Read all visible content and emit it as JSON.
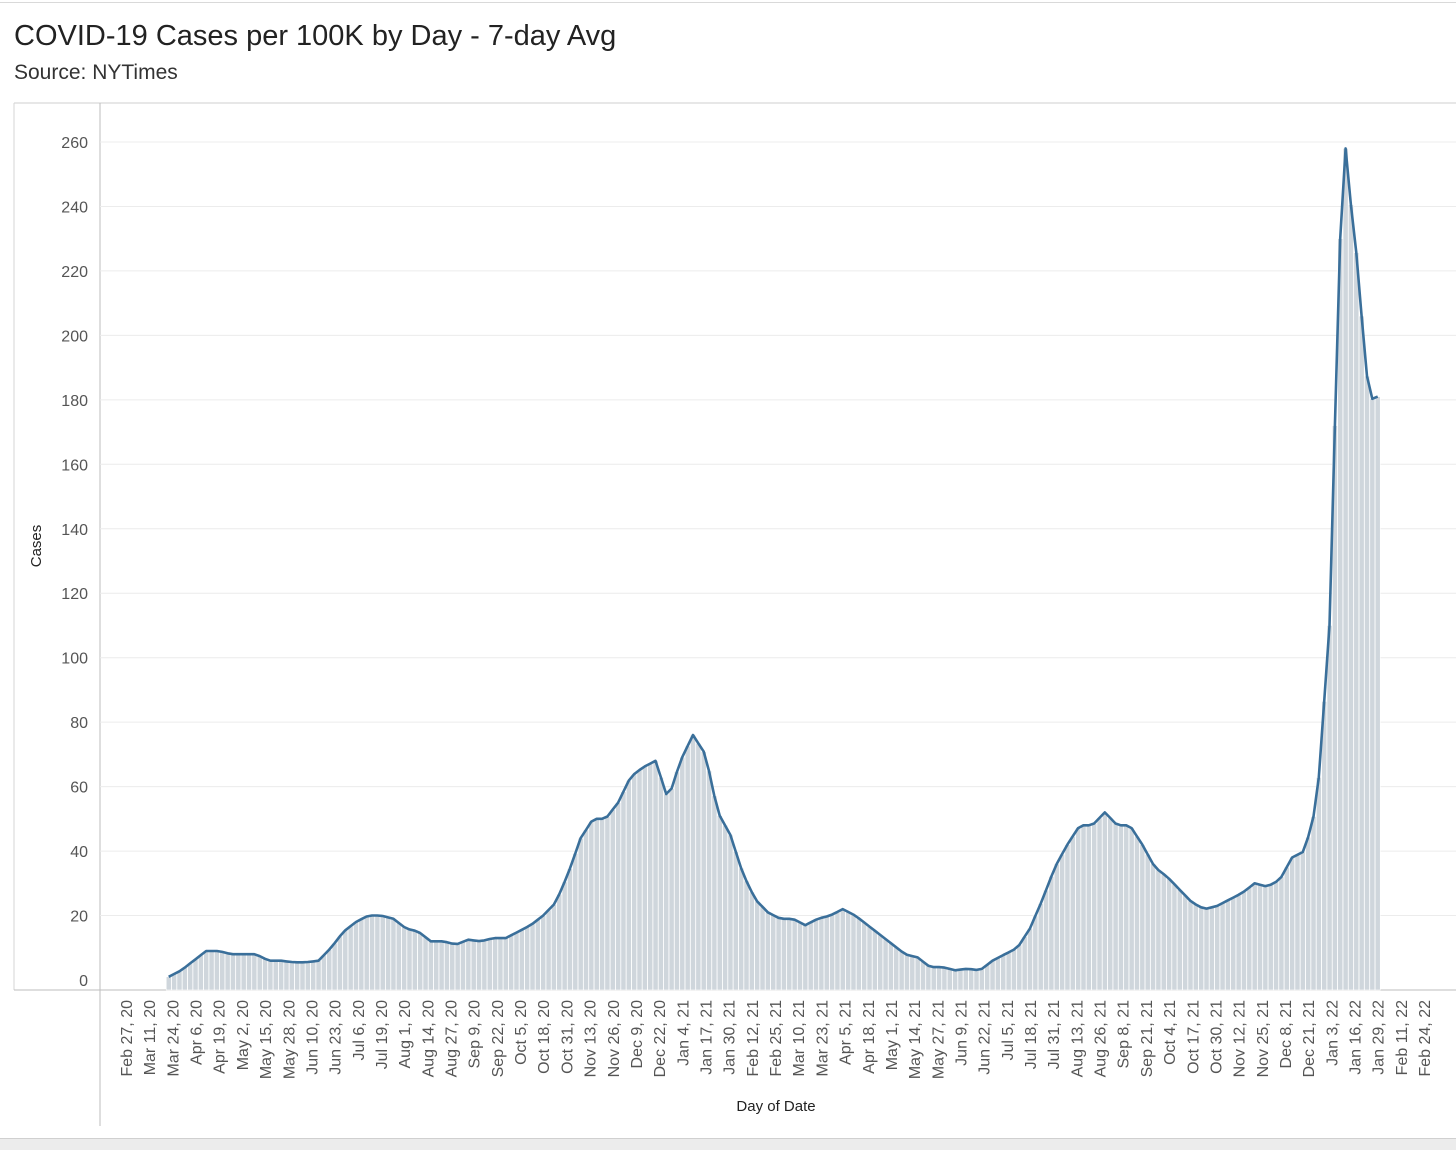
{
  "chart_data": {
    "type": "bar",
    "title": "COVID-19 Cases per 100K by Day - 7-day Avg",
    "subtitle": "Source: NYTimes",
    "xlabel": "Day of Date",
    "ylabel": "Cases",
    "ylim": [
      0,
      270
    ],
    "y_ticks": [
      0,
      20,
      40,
      60,
      80,
      100,
      120,
      140,
      160,
      180,
      200,
      220,
      240,
      260
    ],
    "x_tick_labels": [
      "Feb 27, 20",
      "Mar 11, 20",
      "Mar 24, 20",
      "Apr 6, 20",
      "Apr 19, 20",
      "May 2, 20",
      "May 15, 20",
      "May 28, 20",
      "Jun 10, 20",
      "Jun 23, 20",
      "Jul 6, 20",
      "Jul 19, 20",
      "Aug 1, 20",
      "Aug 14, 20",
      "Aug 27, 20",
      "Sep 9, 20",
      "Sep 22, 20",
      "Oct 5, 20",
      "Oct 18, 20",
      "Oct 31, 20",
      "Nov 13, 20",
      "Nov 26, 20",
      "Dec 9, 20",
      "Dec 22, 20",
      "Jan 4, 21",
      "Jan 17, 21",
      "Jan 30, 21",
      "Feb 12, 21",
      "Feb 25, 21",
      "Mar 10, 21",
      "Mar 23, 21",
      "Apr 5, 21",
      "Apr 18, 21",
      "May 1, 21",
      "May 14, 21",
      "May 27, 21",
      "Jun 9, 21",
      "Jun 22, 21",
      "Jul 5, 21",
      "Jul 18, 21",
      "Jul 31, 21",
      "Aug 13, 21",
      "Aug 26, 21",
      "Sep 8, 21",
      "Sep 21, 21",
      "Oct 4, 21",
      "Oct 17, 21",
      "Oct 30, 21",
      "Nov 12, 21",
      "Nov 25, 21",
      "Dec 8, 21",
      "Dec 21, 21",
      "Jan 3, 22",
      "Jan 16, 22",
      "Jan 29, 22",
      "Feb 11, 22",
      "Feb 24, 22"
    ],
    "grid": true,
    "legend": "none",
    "bar_fill": "#cfd6dc",
    "line_color": "#3a6f9a",
    "series": [
      {
        "x": [
          "2020-03-20",
          "2020-03-27",
          "2020-04-03",
          "2020-04-10",
          "2020-04-17",
          "2020-04-24",
          "2020-05-01",
          "2020-05-08",
          "2020-05-15",
          "2020-05-22",
          "2020-05-29",
          "2020-06-05",
          "2020-06-12",
          "2020-06-19",
          "2020-06-26",
          "2020-07-03",
          "2020-07-10",
          "2020-07-17",
          "2020-07-24",
          "2020-07-31",
          "2020-08-07",
          "2020-08-14",
          "2020-08-21",
          "2020-08-28",
          "2020-09-04",
          "2020-09-11",
          "2020-09-18",
          "2020-09-25",
          "2020-10-02",
          "2020-10-09",
          "2020-10-16",
          "2020-10-23",
          "2020-10-30",
          "2020-11-06",
          "2020-11-13",
          "2020-11-20",
          "2020-11-27",
          "2020-12-04",
          "2020-12-11",
          "2020-12-18",
          "2020-12-25",
          "2021-01-01",
          "2021-01-08",
          "2021-01-15",
          "2021-01-22",
          "2021-01-29",
          "2021-02-05",
          "2021-02-12",
          "2021-02-19",
          "2021-02-26",
          "2021-03-05",
          "2021-03-12",
          "2021-03-19",
          "2021-03-26",
          "2021-04-02",
          "2021-04-09",
          "2021-04-16",
          "2021-04-23",
          "2021-04-30",
          "2021-05-07",
          "2021-05-14",
          "2021-05-21",
          "2021-05-28",
          "2021-06-04",
          "2021-06-11",
          "2021-06-18",
          "2021-06-25",
          "2021-07-02",
          "2021-07-09",
          "2021-07-16",
          "2021-07-23",
          "2021-07-30",
          "2021-08-06",
          "2021-08-13",
          "2021-08-20",
          "2021-08-27",
          "2021-09-03",
          "2021-09-10",
          "2021-09-17",
          "2021-09-24",
          "2021-10-01",
          "2021-10-08",
          "2021-10-15",
          "2021-10-22",
          "2021-10-29",
          "2021-11-05",
          "2021-11-12",
          "2021-11-19",
          "2021-11-26",
          "2021-12-03",
          "2021-12-10",
          "2021-12-17",
          "2021-12-24",
          "2021-12-31",
          "2022-01-03",
          "2022-01-06",
          "2022-01-09",
          "2022-01-11",
          "2022-01-13",
          "2022-01-16",
          "2022-01-19",
          "2022-01-22",
          "2022-01-25",
          "2022-01-27",
          "2022-01-29"
        ],
        "values": [
          1,
          3,
          6,
          9,
          9,
          8,
          8,
          8,
          6,
          6,
          5.5,
          5.5,
          6,
          10,
          15,
          18,
          20,
          20,
          19,
          16,
          15,
          12,
          12,
          11,
          12.5,
          12,
          13,
          13,
          15,
          17,
          20,
          24,
          33,
          44,
          50,
          50,
          55,
          63,
          66,
          68,
          56,
          68,
          76,
          70,
          52,
          45,
          33,
          25,
          21,
          19,
          19,
          17,
          19,
          20,
          22,
          20,
          17,
          14,
          11,
          8,
          7,
          4,
          4,
          3,
          3.5,
          3,
          6,
          8,
          10,
          16,
          25,
          35,
          42,
          48,
          48,
          52,
          48,
          48,
          42,
          35,
          32,
          28,
          24,
          22,
          23,
          25,
          27,
          30,
          29,
          31,
          38,
          40,
          55,
          110,
          172,
          230,
          258,
          240,
          241,
          218,
          200,
          181,
          180,
          181,
          181
        ]
      }
    ]
  }
}
